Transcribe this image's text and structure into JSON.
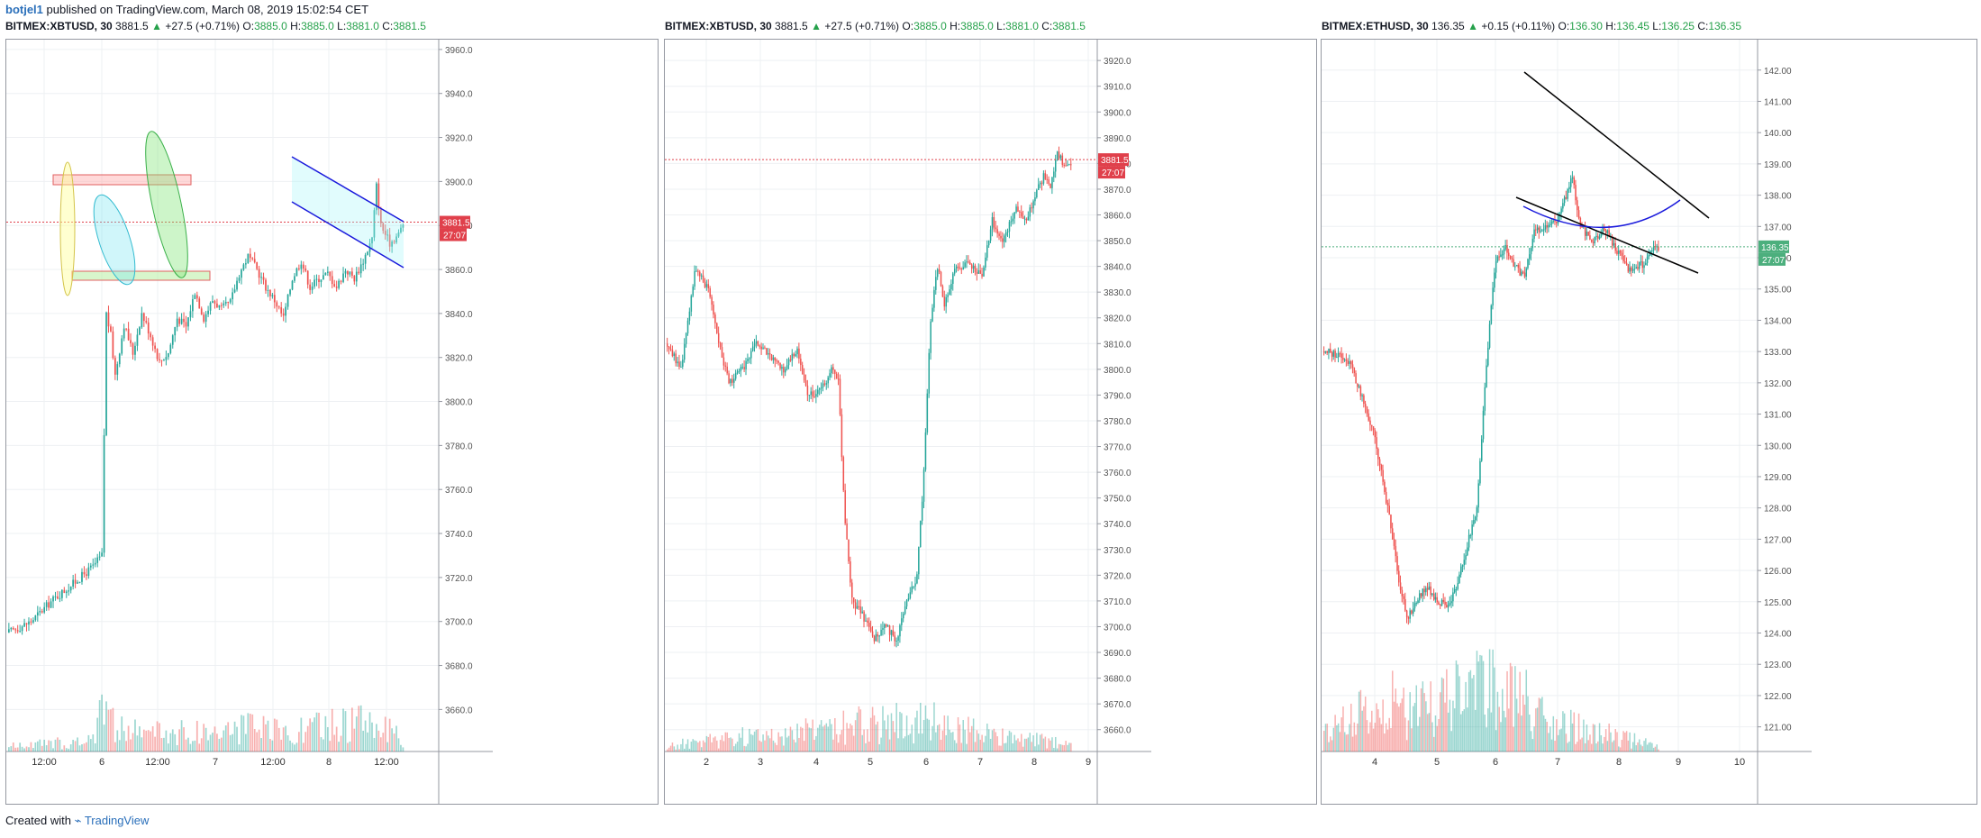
{
  "header": {
    "user": "botjel1",
    "published": "published on TradingView.com, March 08, 2019 15:02:54 CET"
  },
  "footer": {
    "created_with": "Created with",
    "brand": "TradingView"
  },
  "colors": {
    "up": "#26a69a",
    "down": "#ef5350",
    "price_tag": "#e0404b",
    "eth_tag": "#4caf7d",
    "channel": "#1a1adc",
    "grid": "#eef0f3"
  },
  "panels": [
    {
      "legend": {
        "symbol": "BITMEX:XBTUSD, 30",
        "last": "3881.5",
        "arrow": "▲",
        "change": "+27.5 (+0.71%)",
        "o_label": "O:",
        "o": "3885.0",
        "h_label": "H:",
        "h": "3885.0",
        "l_label": "L:",
        "l": "3881.0",
        "c_label": "C:",
        "c": "3881.5"
      },
      "price_tag": "3881.5",
      "countdown": "27:07",
      "y_ticks": [
        "3960.0",
        "3940.0",
        "3920.0",
        "3900.0",
        "3880.0",
        "3860.0",
        "3840.0",
        "3820.0",
        "3800.0",
        "3780.0",
        "3760.0",
        "3740.0",
        "3720.0",
        "3700.0",
        "3680.0",
        "3660.0"
      ],
      "x_ticks": [
        "12:00",
        "6",
        "12:00",
        "7",
        "12:00",
        "8",
        "12:00"
      ]
    },
    {
      "legend": {
        "symbol": "BITMEX:XBTUSD, 30",
        "last": "3881.5",
        "arrow": "▲",
        "change": "+27.5 (+0.71%)",
        "o_label": "O:",
        "o": "3885.0",
        "h_label": "H:",
        "h": "3885.0",
        "l_label": "L:",
        "l": "3881.0",
        "c_label": "C:",
        "c": "3881.5"
      },
      "price_tag": "3881.5",
      "countdown": "27:07",
      "y_ticks": [
        "3920.0",
        "3910.0",
        "3900.0",
        "3890.0",
        "3880.0",
        "3870.0",
        "3860.0",
        "3850.0",
        "3840.0",
        "3830.0",
        "3820.0",
        "3810.0",
        "3800.0",
        "3790.0",
        "3780.0",
        "3770.0",
        "3760.0",
        "3750.0",
        "3740.0",
        "3730.0",
        "3720.0",
        "3710.0",
        "3700.0",
        "3690.0",
        "3680.0",
        "3670.0",
        "3660.0"
      ],
      "x_ticks": [
        "2",
        "3",
        "4",
        "5",
        "6",
        "7",
        "8",
        "9"
      ]
    },
    {
      "legend": {
        "symbol": "BITMEX:ETHUSD, 30",
        "last": "136.35",
        "arrow": "▲",
        "change": "+0.15 (+0.11%)",
        "o_label": "O:",
        "o": "136.30",
        "h_label": "H:",
        "h": "136.45",
        "l_label": "L:",
        "l": "136.25",
        "c_label": "C:",
        "c": "136.35"
      },
      "price_tag": "136.35",
      "countdown": "27:07",
      "y_ticks": [
        "142.00",
        "141.00",
        "140.00",
        "139.00",
        "138.00",
        "137.00",
        "136.00",
        "135.00",
        "134.00",
        "133.00",
        "132.00",
        "131.00",
        "130.00",
        "129.00",
        "128.00",
        "127.00",
        "126.00",
        "125.00",
        "124.00",
        "123.00",
        "122.00",
        "121.00"
      ],
      "x_ticks": [
        "4",
        "5",
        "6",
        "7",
        "8",
        "9",
        "10"
      ]
    }
  ],
  "chart_data": [
    {
      "type": "candlestick",
      "title": "BITMEX:XBTUSD, 30",
      "ylim": [
        3645,
        3962
      ],
      "price_line": 3881.5,
      "x_ticks": [
        "12:00",
        "6",
        "12:00",
        "7",
        "12:00",
        "8",
        "12:00"
      ],
      "path": [
        [
          0,
          3695
        ],
        [
          10,
          3700
        ],
        [
          20,
          3710
        ],
        [
          30,
          3718
        ],
        [
          38,
          3725
        ],
        [
          42,
          3730
        ],
        [
          44,
          3840
        ],
        [
          46,
          3830
        ],
        [
          48,
          3812
        ],
        [
          52,
          3835
        ],
        [
          56,
          3822
        ],
        [
          60,
          3840
        ],
        [
          64,
          3830
        ],
        [
          68,
          3818
        ],
        [
          72,
          3822
        ],
        [
          76,
          3838
        ],
        [
          80,
          3834
        ],
        [
          84,
          3850
        ],
        [
          88,
          3838
        ],
        [
          92,
          3846
        ],
        [
          96,
          3842
        ],
        [
          100,
          3845
        ],
        [
          104,
          3858
        ],
        [
          108,
          3866
        ],
        [
          112,
          3860
        ],
        [
          116,
          3852
        ],
        [
          120,
          3846
        ],
        [
          124,
          3838
        ],
        [
          128,
          3856
        ],
        [
          132,
          3864
        ],
        [
          136,
          3852
        ],
        [
          140,
          3856
        ],
        [
          144,
          3858
        ],
        [
          148,
          3852
        ],
        [
          152,
          3860
        ],
        [
          156,
          3856
        ],
        [
          160,
          3864
        ],
        [
          164,
          3874
        ],
        [
          166,
          3898
        ],
        [
          168,
          3880
        ],
        [
          172,
          3872
        ],
        [
          176,
          3876
        ],
        [
          178,
          3881
        ]
      ],
      "vol_profile": [
        [
          0,
          0.05
        ],
        [
          38,
          0.1
        ],
        [
          42,
          0.75
        ],
        [
          44,
          0.5
        ],
        [
          48,
          0.2
        ],
        [
          80,
          0.18
        ],
        [
          108,
          0.22
        ],
        [
          124,
          0.18
        ],
        [
          164,
          0.3
        ],
        [
          178,
          0.1
        ]
      ]
    },
    {
      "type": "candlestick",
      "title": "BITMEX:XBTUSD, 30",
      "ylim": [
        3655,
        3926
      ],
      "price_line": 3881.5,
      "x_ticks": [
        "2",
        "3",
        "4",
        "5",
        "6",
        "7",
        "8",
        "9"
      ],
      "path": [
        [
          0,
          3810
        ],
        [
          8,
          3800
        ],
        [
          16,
          3838
        ],
        [
          24,
          3832
        ],
        [
          32,
          3805
        ],
        [
          36,
          3795
        ],
        [
          44,
          3800
        ],
        [
          52,
          3810
        ],
        [
          60,
          3805
        ],
        [
          68,
          3800
        ],
        [
          76,
          3808
        ],
        [
          82,
          3790
        ],
        [
          90,
          3792
        ],
        [
          96,
          3800
        ],
        [
          100,
          3795
        ],
        [
          104,
          3740
        ],
        [
          108,
          3710
        ],
        [
          114,
          3705
        ],
        [
          120,
          3695
        ],
        [
          128,
          3700
        ],
        [
          134,
          3695
        ],
        [
          140,
          3710
        ],
        [
          146,
          3720
        ],
        [
          150,
          3760
        ],
        [
          154,
          3820
        ],
        [
          158,
          3840
        ],
        [
          162,
          3825
        ],
        [
          168,
          3838
        ],
        [
          176,
          3842
        ],
        [
          184,
          3836
        ],
        [
          190,
          3858
        ],
        [
          196,
          3850
        ],
        [
          204,
          3862
        ],
        [
          210,
          3858
        ],
        [
          214,
          3866
        ],
        [
          220,
          3875
        ],
        [
          224,
          3870
        ],
        [
          228,
          3885
        ],
        [
          232,
          3878
        ],
        [
          236,
          3881
        ]
      ],
      "vol_profile": [
        [
          0,
          0.1
        ],
        [
          104,
          0.4
        ],
        [
          150,
          0.5
        ],
        [
          190,
          0.25
        ],
        [
          236,
          0.12
        ]
      ]
    },
    {
      "type": "candlestick",
      "title": "BITMEX:ETHUSD, 30",
      "ylim": [
        120.5,
        142.8
      ],
      "price_line": 136.35,
      "x_ticks": [
        "4",
        "5",
        "6",
        "7",
        "8",
        "9",
        "10"
      ],
      "path": [
        [
          0,
          133.0
        ],
        [
          8,
          132.9
        ],
        [
          16,
          132.7
        ],
        [
          24,
          131.5
        ],
        [
          32,
          130.2
        ],
        [
          40,
          128.0
        ],
        [
          46,
          126.0
        ],
        [
          52,
          124.5
        ],
        [
          58,
          125.0
        ],
        [
          64,
          125.5
        ],
        [
          72,
          125.0
        ],
        [
          78,
          124.8
        ],
        [
          84,
          125.6
        ],
        [
          90,
          126.8
        ],
        [
          96,
          128.0
        ],
        [
          100,
          131.0
        ],
        [
          104,
          134.0
        ],
        [
          108,
          136.0
        ],
        [
          114,
          136.3
        ],
        [
          120,
          135.7
        ],
        [
          126,
          135.4
        ],
        [
          132,
          136.8
        ],
        [
          138,
          137.0
        ],
        [
          146,
          137.2
        ],
        [
          152,
          138.0
        ],
        [
          156,
          138.6
        ],
        [
          160,
          137.2
        ],
        [
          168,
          136.4
        ],
        [
          176,
          137.0
        ],
        [
          184,
          136.2
        ],
        [
          192,
          135.6
        ],
        [
          200,
          135.8
        ],
        [
          206,
          136.2
        ],
        [
          210,
          136.35
        ]
      ],
      "vol_profile": [
        [
          0,
          0.15
        ],
        [
          40,
          0.55
        ],
        [
          52,
          0.35
        ],
        [
          100,
          0.6
        ],
        [
          132,
          0.45
        ],
        [
          152,
          0.25
        ],
        [
          210,
          0.05
        ]
      ]
    }
  ]
}
